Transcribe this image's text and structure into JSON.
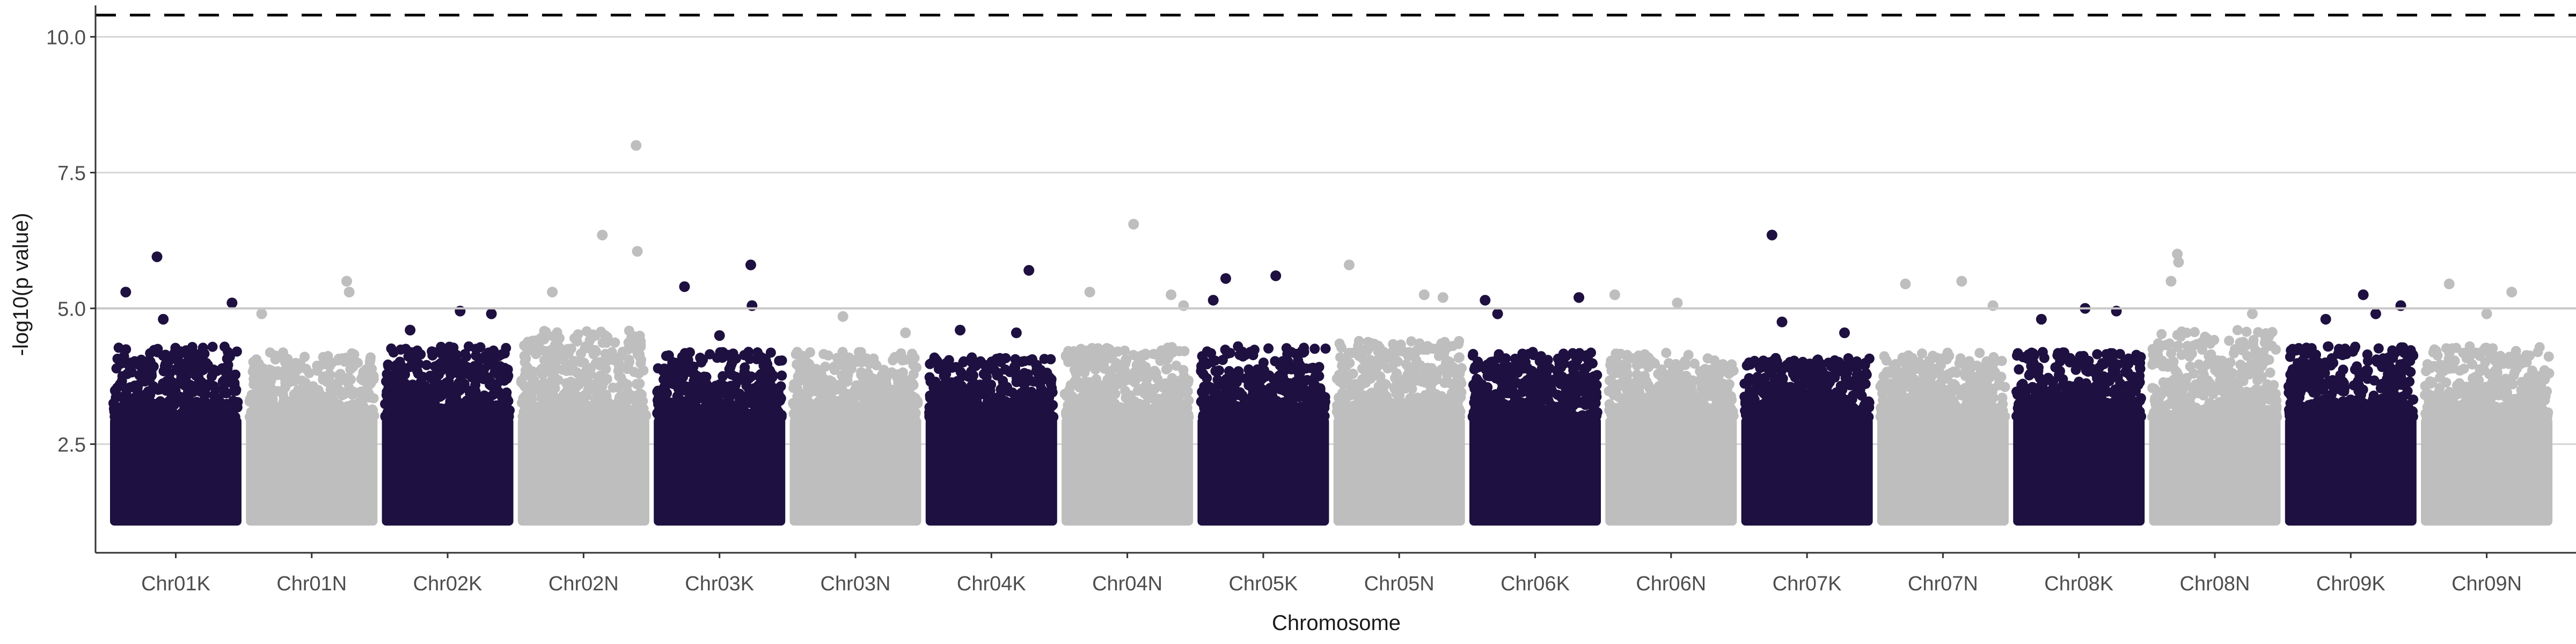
{
  "chart_data": {
    "type": "scatter",
    "title": "",
    "xlabel": "Chromosome",
    "ylabel": "-log10(p value)",
    "ylim": [
      0.5,
      10.5
    ],
    "yticks": [
      "2.5",
      "5.0",
      "7.5",
      "10.0"
    ],
    "ytick_values": [
      2.5,
      5.0,
      7.5,
      10.0
    ],
    "reference_lines": [
      {
        "y": 5.0,
        "style": "solid",
        "color": "#c8c8c8"
      },
      {
        "y": 10.4,
        "style": "dashed",
        "color": "#000000"
      }
    ],
    "grid": "horizontal lines at y ticks",
    "legend": "none",
    "min_plotted_value": 1.0,
    "colors": {
      "dark": "#1e1040",
      "light": "#bebebe"
    },
    "categories": [
      "Chr01K",
      "Chr01N",
      "Chr02K",
      "Chr02N",
      "Chr03K",
      "Chr03N",
      "Chr04K",
      "Chr04N",
      "Chr05K",
      "Chr05N",
      "Chr06K",
      "Chr06N",
      "Chr07K",
      "Chr07N",
      "Chr08K",
      "Chr08N",
      "Chr09K",
      "Chr09N"
    ],
    "chromosomes": [
      {
        "name": "Chr01K",
        "color": "dark",
        "typical_max": 4.0,
        "top_hits": [
          {
            "pos": 0.35,
            "y": 5.95
          },
          {
            "pos": 0.1,
            "y": 5.3
          },
          {
            "pos": 0.95,
            "y": 5.1
          },
          {
            "pos": 0.4,
            "y": 4.8
          }
        ]
      },
      {
        "name": "Chr01N",
        "color": "light",
        "typical_max": 3.9,
        "top_hits": [
          {
            "pos": 0.78,
            "y": 5.5
          },
          {
            "pos": 0.8,
            "y": 5.3
          },
          {
            "pos": 0.1,
            "y": 4.9
          }
        ]
      },
      {
        "name": "Chr02K",
        "color": "dark",
        "typical_max": 4.0,
        "top_hits": [
          {
            "pos": 0.6,
            "y": 4.95
          },
          {
            "pos": 0.85,
            "y": 4.9
          },
          {
            "pos": 0.2,
            "y": 4.6
          }
        ]
      },
      {
        "name": "Chr02N",
        "color": "light",
        "typical_max": 4.3,
        "top_hits": [
          {
            "pos": 0.92,
            "y": 8.0
          },
          {
            "pos": 0.65,
            "y": 6.35
          },
          {
            "pos": 0.93,
            "y": 6.05
          },
          {
            "pos": 0.25,
            "y": 5.3
          }
        ]
      },
      {
        "name": "Chr03K",
        "color": "dark",
        "typical_max": 3.9,
        "top_hits": [
          {
            "pos": 0.75,
            "y": 5.8
          },
          {
            "pos": 0.22,
            "y": 5.4
          },
          {
            "pos": 0.76,
            "y": 5.05
          },
          {
            "pos": 0.5,
            "y": 4.5
          }
        ]
      },
      {
        "name": "Chr03N",
        "color": "light",
        "typical_max": 3.9,
        "top_hits": [
          {
            "pos": 0.4,
            "y": 4.85
          },
          {
            "pos": 0.9,
            "y": 4.55
          }
        ]
      },
      {
        "name": "Chr04K",
        "color": "dark",
        "typical_max": 3.8,
        "top_hits": [
          {
            "pos": 0.8,
            "y": 5.7
          },
          {
            "pos": 0.25,
            "y": 4.6
          },
          {
            "pos": 0.7,
            "y": 4.55
          }
        ]
      },
      {
        "name": "Chr04N",
        "color": "light",
        "typical_max": 4.0,
        "top_hits": [
          {
            "pos": 0.55,
            "y": 6.55
          },
          {
            "pos": 0.2,
            "y": 5.3
          },
          {
            "pos": 0.85,
            "y": 5.25
          },
          {
            "pos": 0.95,
            "y": 5.05
          }
        ]
      },
      {
        "name": "Chr05K",
        "color": "dark",
        "typical_max": 4.0,
        "top_hits": [
          {
            "pos": 0.2,
            "y": 5.55
          },
          {
            "pos": 0.6,
            "y": 5.6
          },
          {
            "pos": 0.1,
            "y": 5.15
          }
        ]
      },
      {
        "name": "Chr05N",
        "color": "light",
        "typical_max": 4.1,
        "top_hits": [
          {
            "pos": 0.1,
            "y": 5.8
          },
          {
            "pos": 0.7,
            "y": 5.25
          },
          {
            "pos": 0.85,
            "y": 5.2
          }
        ]
      },
      {
        "name": "Chr06K",
        "color": "dark",
        "typical_max": 3.9,
        "top_hits": [
          {
            "pos": 0.85,
            "y": 5.2
          },
          {
            "pos": 0.1,
            "y": 5.15
          },
          {
            "pos": 0.2,
            "y": 4.9
          }
        ]
      },
      {
        "name": "Chr06N",
        "color": "light",
        "typical_max": 3.9,
        "top_hits": [
          {
            "pos": 0.05,
            "y": 5.25
          },
          {
            "pos": 0.55,
            "y": 5.1
          }
        ]
      },
      {
        "name": "Chr07K",
        "color": "dark",
        "typical_max": 3.8,
        "top_hits": [
          {
            "pos": 0.22,
            "y": 6.35
          },
          {
            "pos": 0.3,
            "y": 4.75
          },
          {
            "pos": 0.8,
            "y": 4.55
          }
        ]
      },
      {
        "name": "Chr07N",
        "color": "light",
        "typical_max": 3.9,
        "top_hits": [
          {
            "pos": 0.65,
            "y": 5.5
          },
          {
            "pos": 0.2,
            "y": 5.45
          },
          {
            "pos": 0.9,
            "y": 5.05
          }
        ]
      },
      {
        "name": "Chr08K",
        "color": "dark",
        "typical_max": 3.9,
        "top_hits": [
          {
            "pos": 0.55,
            "y": 5.0
          },
          {
            "pos": 0.8,
            "y": 4.95
          },
          {
            "pos": 0.2,
            "y": 4.8
          }
        ]
      },
      {
        "name": "Chr08N",
        "color": "light",
        "typical_max": 4.3,
        "top_hits": [
          {
            "pos": 0.2,
            "y": 6.0
          },
          {
            "pos": 0.21,
            "y": 5.85
          },
          {
            "pos": 0.15,
            "y": 5.5
          },
          {
            "pos": 0.8,
            "y": 4.9
          }
        ]
      },
      {
        "name": "Chr09K",
        "color": "dark",
        "typical_max": 4.0,
        "top_hits": [
          {
            "pos": 0.6,
            "y": 5.25
          },
          {
            "pos": 0.9,
            "y": 5.05
          },
          {
            "pos": 0.7,
            "y": 4.9
          },
          {
            "pos": 0.3,
            "y": 4.8
          }
        ]
      },
      {
        "name": "Chr09N",
        "color": "light",
        "typical_max": 4.0,
        "top_hits": [
          {
            "pos": 0.2,
            "y": 5.45
          },
          {
            "pos": 0.7,
            "y": 5.3
          },
          {
            "pos": 0.5,
            "y": 4.9
          }
        ]
      }
    ]
  }
}
